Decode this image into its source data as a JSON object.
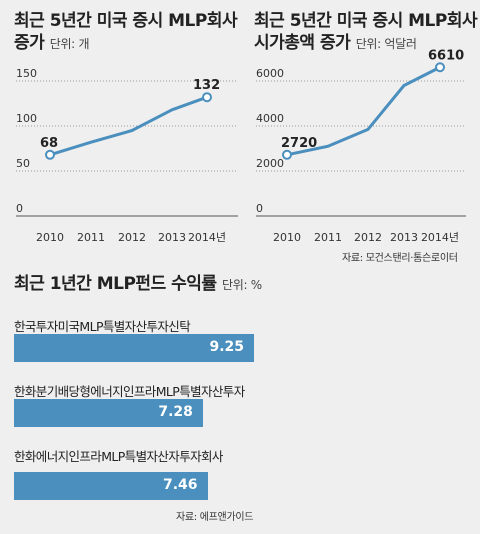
{
  "chart_data": [
    {
      "type": "line",
      "title": "최근 5년간 미국 증시 MLP회사 증가",
      "unit": "단위: 개",
      "x": [
        "2010",
        "2011",
        "2012",
        "2013",
        "2014년"
      ],
      "y_ticks": [
        "0",
        "50",
        "100",
        "150"
      ],
      "ylim": [
        0,
        150
      ],
      "series": [
        {
          "values": [
            68,
            82,
            95,
            118,
            132
          ]
        }
      ],
      "data_labels": [
        {
          "index": 0,
          "text": "68"
        },
        {
          "index": 4,
          "text": "132"
        }
      ],
      "color": "#4a8fbe"
    },
    {
      "type": "line",
      "title": "최근 5년간 미국 증시 MLP회사 시가총액 증가",
      "unit": "단위: 억달러",
      "x": [
        "2010",
        "2011",
        "2012",
        "2013",
        "2014년"
      ],
      "y_ticks": [
        "0",
        "2000",
        "4000",
        "6000"
      ],
      "ylim": [
        0,
        6000
      ],
      "series": [
        {
          "values": [
            2720,
            3100,
            3850,
            5800,
            6610
          ]
        }
      ],
      "data_labels": [
        {
          "index": 0,
          "text": "2720"
        },
        {
          "index": 4,
          "text": "6610"
        }
      ],
      "color": "#4a8fbe",
      "source": "자료: 모건스탠리·톰슨로이터"
    },
    {
      "type": "bar",
      "title": "최근 1년간 MLP펀드 수익률",
      "unit": "단위: %",
      "categories": [
        "한국투자미국MLP특별자산투자신탁",
        "한화분기배당형에너지인프라MLP특별자산투자",
        "한화에너지인프라MLP특별자산자투자회사"
      ],
      "values": [
        9.25,
        7.28,
        7.46
      ],
      "value_labels": [
        "9.25",
        "7.28",
        "7.46"
      ],
      "xlim": [
        0,
        9.25
      ],
      "color": "#4a8fbe",
      "source": "자료: 에프앤가이드"
    }
  ],
  "titles": {
    "c1_line1": "최근 5년간 미국 증시 MLP회사",
    "c1_line2": "증가",
    "c2_line1": "최근 5년간 미국 증시 MLP회사",
    "c2_line2": "시가총액 증가"
  }
}
